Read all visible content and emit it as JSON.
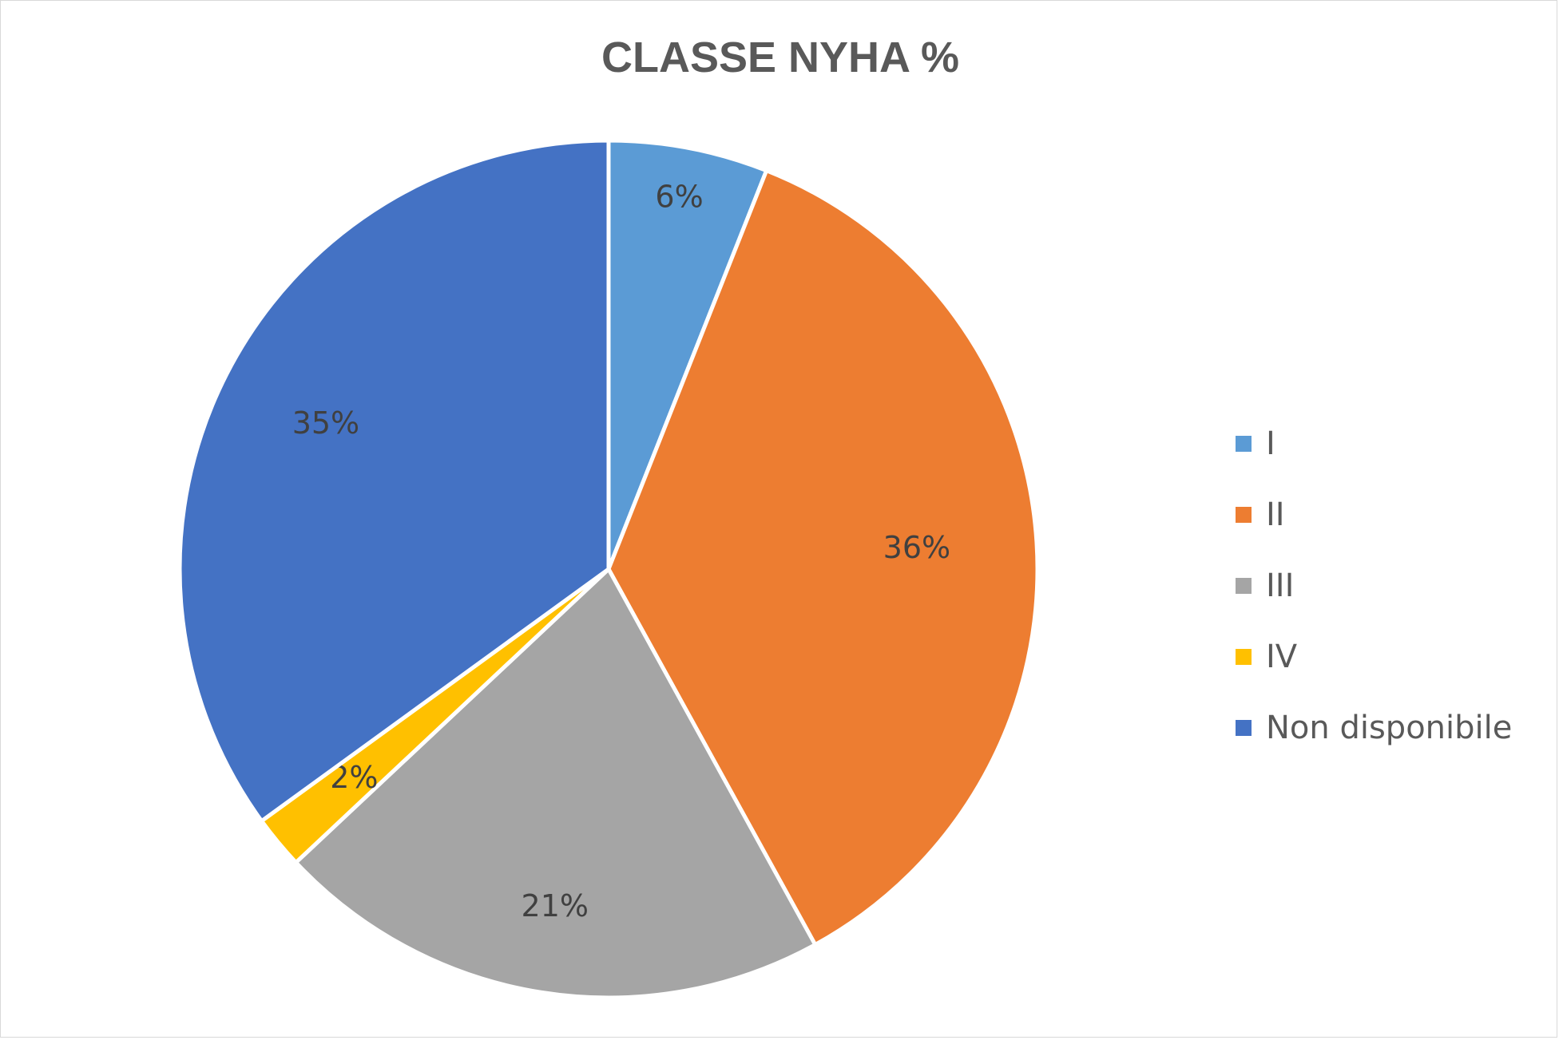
{
  "chart_data": {
    "type": "pie",
    "title": "CLASSE NYHA %",
    "categories": [
      "I",
      "II",
      "III",
      "IV",
      "Non disponibile"
    ],
    "values": [
      6,
      36,
      21,
      2,
      35
    ],
    "labels": [
      "6%",
      "36%",
      "21%",
      "2%",
      "35%"
    ],
    "colors": [
      "#5B9BD5",
      "#ED7D31",
      "#A5A5A5",
      "#FFC000",
      "#4472C4"
    ],
    "legend_position": "right"
  }
}
